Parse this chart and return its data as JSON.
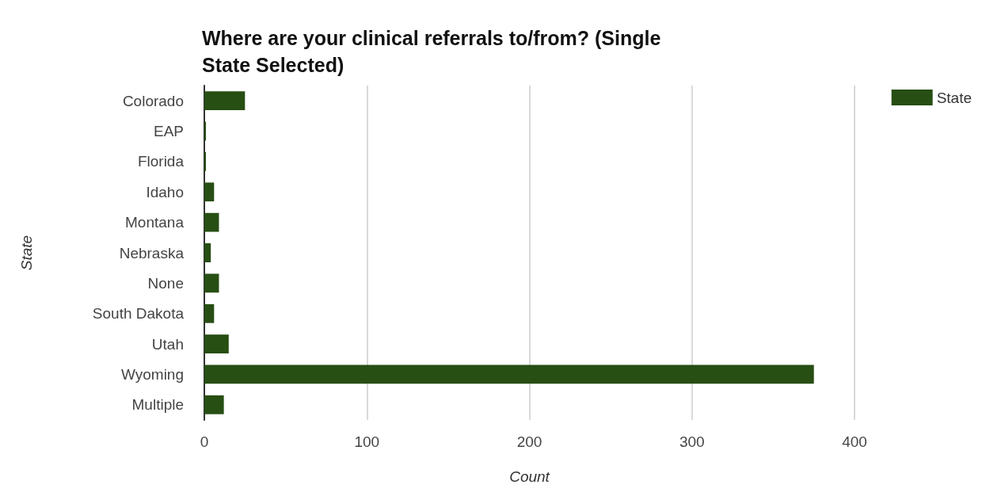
{
  "chart_data": {
    "type": "bar",
    "orientation": "horizontal",
    "title": "Where are your clinical referrals to/from? (Single\nState Selected)",
    "xlabel": "Count",
    "ylabel": "State",
    "categories": [
      "Colorado",
      "EAP",
      "Florida",
      "Idaho",
      "Montana",
      "Nebraska",
      "None",
      "South Dakota",
      "Utah",
      "Wyoming",
      "Multiple"
    ],
    "series": [
      {
        "name": "State",
        "color": "#274e13",
        "values": [
          25,
          1,
          1,
          6,
          9,
          4,
          9,
          6,
          15,
          375,
          12
        ]
      }
    ],
    "xlim": [
      0,
      400
    ],
    "xticks": [
      0,
      100,
      200,
      300,
      400
    ],
    "grid": "x",
    "legend": "top right"
  }
}
